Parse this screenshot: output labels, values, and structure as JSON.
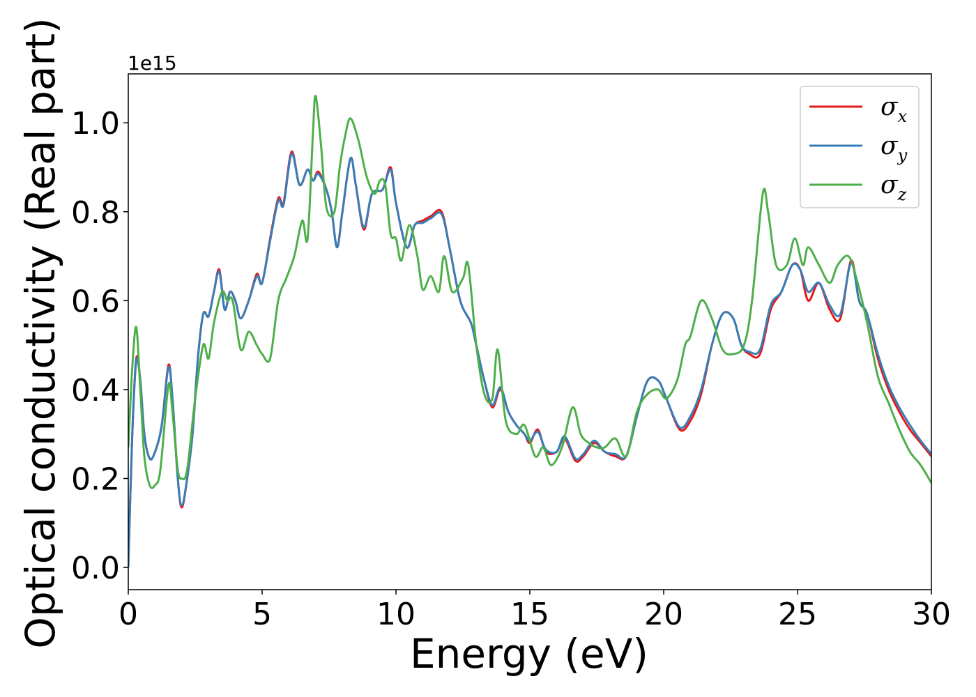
{
  "chart_data": {
    "type": "line",
    "xlabel": "Energy (eV)",
    "ylabel": "Optical conductivity (Real part)",
    "y_offset_label": "1e15",
    "xlim": [
      0,
      30
    ],
    "ylim": [
      -0.05,
      1.11
    ],
    "xticks": [
      0,
      5,
      10,
      15,
      20,
      25,
      30
    ],
    "yticks": [
      0.0,
      0.2,
      0.4,
      0.6,
      0.8,
      1.0
    ],
    "xtick_labels": [
      "0",
      "5",
      "10",
      "15",
      "20",
      "25",
      "30"
    ],
    "ytick_labels": [
      "0.0",
      "0.2",
      "0.4",
      "0.6",
      "0.8",
      "1.0"
    ],
    "grid": false,
    "legend_position": "top-right",
    "series": [
      {
        "name": "σ",
        "subscript": "x",
        "color": "#e41a1c",
        "points": [
          [
            0,
            0
          ],
          [
            0.15,
            0.3
          ],
          [
            0.3,
            0.47
          ],
          [
            0.45,
            0.42
          ],
          [
            0.6,
            0.3
          ],
          [
            0.8,
            0.245
          ],
          [
            1.0,
            0.26
          ],
          [
            1.25,
            0.32
          ],
          [
            1.5,
            0.455
          ],
          [
            1.65,
            0.38
          ],
          [
            1.85,
            0.2
          ],
          [
            2.0,
            0.135
          ],
          [
            2.2,
            0.2
          ],
          [
            2.4,
            0.3
          ],
          [
            2.6,
            0.47
          ],
          [
            2.8,
            0.57
          ],
          [
            3.0,
            0.565
          ],
          [
            3.2,
            0.62
          ],
          [
            3.4,
            0.67
          ],
          [
            3.6,
            0.58
          ],
          [
            3.8,
            0.62
          ],
          [
            4.0,
            0.6
          ],
          [
            4.2,
            0.56
          ],
          [
            4.5,
            0.6
          ],
          [
            4.8,
            0.66
          ],
          [
            5.0,
            0.64
          ],
          [
            5.3,
            0.74
          ],
          [
            5.6,
            0.83
          ],
          [
            5.8,
            0.82
          ],
          [
            6.1,
            0.935
          ],
          [
            6.4,
            0.86
          ],
          [
            6.7,
            0.895
          ],
          [
            6.9,
            0.87
          ],
          [
            7.1,
            0.89
          ],
          [
            7.4,
            0.85
          ],
          [
            7.6,
            0.8
          ],
          [
            7.8,
            0.72
          ],
          [
            8.0,
            0.8
          ],
          [
            8.3,
            0.92
          ],
          [
            8.5,
            0.86
          ],
          [
            8.8,
            0.76
          ],
          [
            9.1,
            0.84
          ],
          [
            9.5,
            0.85
          ],
          [
            9.8,
            0.9
          ],
          [
            10.0,
            0.82
          ],
          [
            10.4,
            0.72
          ],
          [
            10.7,
            0.77
          ],
          [
            11.0,
            0.78
          ],
          [
            11.3,
            0.79
          ],
          [
            11.7,
            0.8
          ],
          [
            12.0,
            0.72
          ],
          [
            12.4,
            0.6
          ],
          [
            12.8,
            0.55
          ],
          [
            13.0,
            0.5
          ],
          [
            13.3,
            0.42
          ],
          [
            13.6,
            0.36
          ],
          [
            13.9,
            0.4
          ],
          [
            14.2,
            0.35
          ],
          [
            14.5,
            0.32
          ],
          [
            14.8,
            0.3
          ],
          [
            15.0,
            0.28
          ],
          [
            15.3,
            0.31
          ],
          [
            15.6,
            0.26
          ],
          [
            16.0,
            0.26
          ],
          [
            16.3,
            0.29
          ],
          [
            16.7,
            0.24
          ],
          [
            17.0,
            0.25
          ],
          [
            17.4,
            0.28
          ],
          [
            17.8,
            0.26
          ],
          [
            18.2,
            0.25
          ],
          [
            18.6,
            0.25
          ],
          [
            19.0,
            0.34
          ],
          [
            19.4,
            0.42
          ],
          [
            19.8,
            0.42
          ],
          [
            20.1,
            0.38
          ],
          [
            20.6,
            0.31
          ],
          [
            21.0,
            0.33
          ],
          [
            21.4,
            0.39
          ],
          [
            21.8,
            0.5
          ],
          [
            22.2,
            0.57
          ],
          [
            22.6,
            0.56
          ],
          [
            22.9,
            0.5
          ],
          [
            23.2,
            0.48
          ],
          [
            23.6,
            0.48
          ],
          [
            24.0,
            0.58
          ],
          [
            24.4,
            0.62
          ],
          [
            24.8,
            0.68
          ],
          [
            25.1,
            0.67
          ],
          [
            25.4,
            0.6
          ],
          [
            25.8,
            0.64
          ],
          [
            26.2,
            0.58
          ],
          [
            26.6,
            0.56
          ],
          [
            27.0,
            0.69
          ],
          [
            27.3,
            0.6
          ],
          [
            27.6,
            0.57
          ],
          [
            28.0,
            0.47
          ],
          [
            28.4,
            0.4
          ],
          [
            28.8,
            0.35
          ],
          [
            29.2,
            0.31
          ],
          [
            29.6,
            0.28
          ],
          [
            30.0,
            0.25
          ]
        ]
      },
      {
        "name": "σ",
        "subscript": "y",
        "color": "#377eb8",
        "points": [
          [
            0,
            0
          ],
          [
            0.15,
            0.3
          ],
          [
            0.3,
            0.465
          ],
          [
            0.45,
            0.42
          ],
          [
            0.6,
            0.3
          ],
          [
            0.8,
            0.245
          ],
          [
            1.0,
            0.26
          ],
          [
            1.25,
            0.32
          ],
          [
            1.5,
            0.45
          ],
          [
            1.65,
            0.38
          ],
          [
            1.85,
            0.2
          ],
          [
            2.0,
            0.14
          ],
          [
            2.2,
            0.2
          ],
          [
            2.4,
            0.3
          ],
          [
            2.6,
            0.47
          ],
          [
            2.8,
            0.57
          ],
          [
            3.0,
            0.565
          ],
          [
            3.2,
            0.62
          ],
          [
            3.4,
            0.665
          ],
          [
            3.6,
            0.58
          ],
          [
            3.8,
            0.62
          ],
          [
            4.0,
            0.6
          ],
          [
            4.2,
            0.56
          ],
          [
            4.5,
            0.6
          ],
          [
            4.8,
            0.655
          ],
          [
            5.0,
            0.64
          ],
          [
            5.3,
            0.735
          ],
          [
            5.6,
            0.825
          ],
          [
            5.8,
            0.815
          ],
          [
            6.1,
            0.93
          ],
          [
            6.4,
            0.86
          ],
          [
            6.7,
            0.895
          ],
          [
            6.9,
            0.87
          ],
          [
            7.1,
            0.885
          ],
          [
            7.4,
            0.85
          ],
          [
            7.6,
            0.8
          ],
          [
            7.8,
            0.72
          ],
          [
            8.0,
            0.8
          ],
          [
            8.3,
            0.92
          ],
          [
            8.5,
            0.86
          ],
          [
            8.8,
            0.765
          ],
          [
            9.1,
            0.84
          ],
          [
            9.5,
            0.85
          ],
          [
            9.8,
            0.895
          ],
          [
            10.0,
            0.82
          ],
          [
            10.4,
            0.72
          ],
          [
            10.7,
            0.77
          ],
          [
            11.0,
            0.775
          ],
          [
            11.3,
            0.785
          ],
          [
            11.7,
            0.795
          ],
          [
            12.0,
            0.72
          ],
          [
            12.4,
            0.6
          ],
          [
            12.8,
            0.55
          ],
          [
            13.0,
            0.5
          ],
          [
            13.3,
            0.42
          ],
          [
            13.6,
            0.365
          ],
          [
            13.9,
            0.405
          ],
          [
            14.2,
            0.35
          ],
          [
            14.5,
            0.32
          ],
          [
            14.8,
            0.3
          ],
          [
            15.0,
            0.285
          ],
          [
            15.3,
            0.305
          ],
          [
            15.6,
            0.265
          ],
          [
            16.0,
            0.26
          ],
          [
            16.3,
            0.295
          ],
          [
            16.7,
            0.245
          ],
          [
            17.0,
            0.255
          ],
          [
            17.4,
            0.285
          ],
          [
            17.8,
            0.26
          ],
          [
            18.2,
            0.255
          ],
          [
            18.6,
            0.25
          ],
          [
            19.0,
            0.34
          ],
          [
            19.4,
            0.42
          ],
          [
            19.8,
            0.42
          ],
          [
            20.1,
            0.38
          ],
          [
            20.6,
            0.315
          ],
          [
            21.0,
            0.34
          ],
          [
            21.4,
            0.4
          ],
          [
            21.8,
            0.5
          ],
          [
            22.2,
            0.57
          ],
          [
            22.6,
            0.56
          ],
          [
            22.9,
            0.5
          ],
          [
            23.2,
            0.485
          ],
          [
            23.6,
            0.49
          ],
          [
            24.0,
            0.59
          ],
          [
            24.4,
            0.62
          ],
          [
            24.8,
            0.68
          ],
          [
            25.1,
            0.67
          ],
          [
            25.4,
            0.62
          ],
          [
            25.8,
            0.64
          ],
          [
            26.2,
            0.59
          ],
          [
            26.6,
            0.57
          ],
          [
            27.0,
            0.685
          ],
          [
            27.3,
            0.6
          ],
          [
            27.6,
            0.57
          ],
          [
            28.0,
            0.48
          ],
          [
            28.4,
            0.41
          ],
          [
            28.8,
            0.36
          ],
          [
            29.2,
            0.32
          ],
          [
            29.6,
            0.285
          ],
          [
            30.0,
            0.255
          ]
        ]
      },
      {
        "name": "σ",
        "subscript": "z",
        "color": "#4daf4a",
        "points": [
          [
            0,
            0.27
          ],
          [
            0.15,
            0.45
          ],
          [
            0.3,
            0.54
          ],
          [
            0.45,
            0.4
          ],
          [
            0.6,
            0.25
          ],
          [
            0.8,
            0.185
          ],
          [
            1.0,
            0.185
          ],
          [
            1.2,
            0.22
          ],
          [
            1.5,
            0.41
          ],
          [
            1.65,
            0.35
          ],
          [
            1.85,
            0.22
          ],
          [
            2.0,
            0.2
          ],
          [
            2.2,
            0.22
          ],
          [
            2.5,
            0.38
          ],
          [
            2.8,
            0.5
          ],
          [
            3.0,
            0.47
          ],
          [
            3.2,
            0.55
          ],
          [
            3.5,
            0.62
          ],
          [
            3.7,
            0.6
          ],
          [
            3.9,
            0.6
          ],
          [
            4.2,
            0.49
          ],
          [
            4.5,
            0.53
          ],
          [
            4.8,
            0.5
          ],
          [
            5.0,
            0.48
          ],
          [
            5.3,
            0.47
          ],
          [
            5.6,
            0.6
          ],
          [
            5.9,
            0.65
          ],
          [
            6.2,
            0.7
          ],
          [
            6.5,
            0.78
          ],
          [
            6.7,
            0.74
          ],
          [
            6.9,
            0.98
          ],
          [
            7.0,
            1.06
          ],
          [
            7.2,
            0.95
          ],
          [
            7.4,
            0.81
          ],
          [
            7.7,
            0.8
          ],
          [
            7.9,
            0.9
          ],
          [
            8.1,
            0.97
          ],
          [
            8.3,
            1.01
          ],
          [
            8.6,
            0.96
          ],
          [
            8.9,
            0.88
          ],
          [
            9.2,
            0.84
          ],
          [
            9.4,
            0.87
          ],
          [
            9.6,
            0.86
          ],
          [
            9.8,
            0.75
          ],
          [
            10.0,
            0.74
          ],
          [
            10.2,
            0.69
          ],
          [
            10.5,
            0.77
          ],
          [
            10.8,
            0.7
          ],
          [
            11.0,
            0.625
          ],
          [
            11.3,
            0.655
          ],
          [
            11.6,
            0.62
          ],
          [
            11.8,
            0.7
          ],
          [
            12.1,
            0.62
          ],
          [
            12.5,
            0.65
          ],
          [
            12.7,
            0.68
          ],
          [
            13.0,
            0.5
          ],
          [
            13.3,
            0.39
          ],
          [
            13.6,
            0.38
          ],
          [
            13.8,
            0.49
          ],
          [
            14.1,
            0.33
          ],
          [
            14.5,
            0.3
          ],
          [
            14.8,
            0.32
          ],
          [
            15.2,
            0.25
          ],
          [
            15.5,
            0.27
          ],
          [
            15.8,
            0.23
          ],
          [
            16.2,
            0.27
          ],
          [
            16.6,
            0.36
          ],
          [
            16.9,
            0.3
          ],
          [
            17.2,
            0.28
          ],
          [
            17.5,
            0.27
          ],
          [
            17.8,
            0.27
          ],
          [
            18.2,
            0.29
          ],
          [
            18.6,
            0.25
          ],
          [
            19.0,
            0.35
          ],
          [
            19.4,
            0.39
          ],
          [
            19.8,
            0.4
          ],
          [
            20.1,
            0.38
          ],
          [
            20.5,
            0.42
          ],
          [
            20.8,
            0.5
          ],
          [
            21.0,
            0.52
          ],
          [
            21.4,
            0.6
          ],
          [
            21.8,
            0.56
          ],
          [
            22.2,
            0.49
          ],
          [
            22.6,
            0.48
          ],
          [
            23.0,
            0.5
          ],
          [
            23.3,
            0.6
          ],
          [
            23.7,
            0.84
          ],
          [
            23.9,
            0.8
          ],
          [
            24.2,
            0.68
          ],
          [
            24.6,
            0.68
          ],
          [
            24.9,
            0.74
          ],
          [
            25.2,
            0.68
          ],
          [
            25.4,
            0.72
          ],
          [
            25.8,
            0.68
          ],
          [
            26.2,
            0.64
          ],
          [
            26.5,
            0.68
          ],
          [
            26.9,
            0.7
          ],
          [
            27.2,
            0.65
          ],
          [
            27.6,
            0.55
          ],
          [
            28.0,
            0.43
          ],
          [
            28.4,
            0.37
          ],
          [
            28.8,
            0.31
          ],
          [
            29.2,
            0.26
          ],
          [
            29.6,
            0.23
          ],
          [
            30.0,
            0.19
          ]
        ]
      }
    ]
  }
}
